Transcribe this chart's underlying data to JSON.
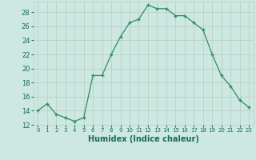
{
  "xlabel": "Humidex (Indice chaleur)",
  "x": [
    0,
    1,
    2,
    3,
    4,
    5,
    6,
    7,
    8,
    9,
    10,
    11,
    12,
    13,
    14,
    15,
    16,
    17,
    18,
    19,
    20,
    21,
    22,
    23
  ],
  "y": [
    14.0,
    15.0,
    13.5,
    13.0,
    12.5,
    13.0,
    19.0,
    19.0,
    22.0,
    24.5,
    26.5,
    27.0,
    29.0,
    28.5,
    28.5,
    27.5,
    27.5,
    26.5,
    25.5,
    22.0,
    19.0,
    17.5,
    15.5,
    14.5
  ],
  "xlim": [
    -0.5,
    23.5
  ],
  "ylim": [
    12,
    29.5
  ],
  "yticks": [
    12,
    14,
    16,
    18,
    20,
    22,
    24,
    26,
    28
  ],
  "xticks": [
    0,
    1,
    2,
    3,
    4,
    5,
    6,
    7,
    8,
    9,
    10,
    11,
    12,
    13,
    14,
    15,
    16,
    17,
    18,
    19,
    20,
    21,
    22,
    23
  ],
  "line_color": "#2E8B6A",
  "marker": "+",
  "bg_color": "#CCE8E0",
  "grid_color": "#BBCFCA",
  "tick_label_color": "#1a6b5a",
  "axis_label_color": "#1a6b5a"
}
